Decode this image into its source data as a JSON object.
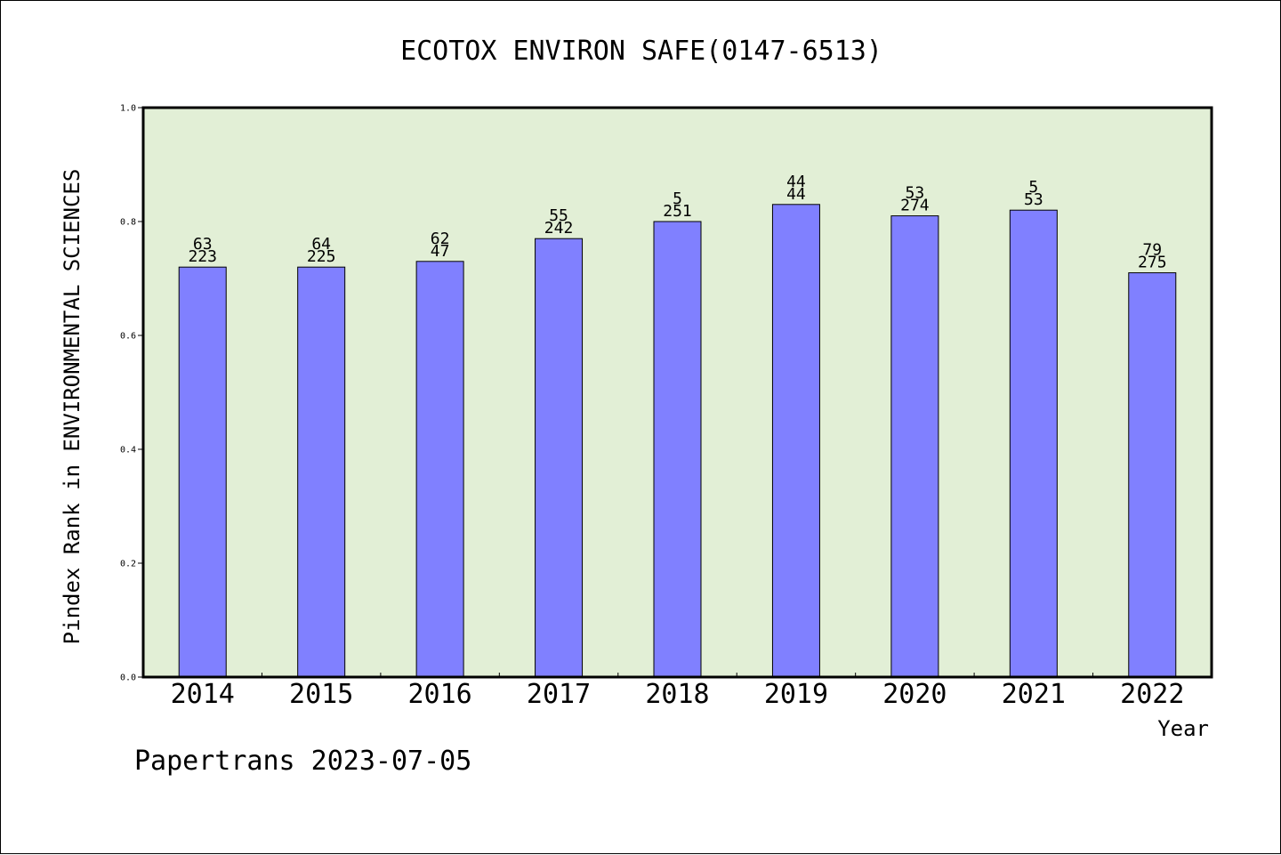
{
  "chart_data": {
    "type": "bar",
    "title": "ECOTOX ENVIRON SAFE(0147-6513)",
    "xlabel": "Year",
    "ylabel": "Pindex Rank in ENVIRONMENTAL SCIENCES",
    "categories": [
      "2014",
      "2015",
      "2016",
      "2017",
      "2018",
      "2019",
      "2020",
      "2021",
      "2022"
    ],
    "values": [
      0.72,
      0.72,
      0.73,
      0.77,
      0.8,
      0.83,
      0.81,
      0.82,
      0.71
    ],
    "labels_top": [
      "63",
      "64",
      "62",
      "55",
      "5",
      "44",
      "53",
      "5",
      "79"
    ],
    "labels_bottom": [
      "223",
      "225",
      "47",
      "242",
      "251",
      "44",
      "274",
      "53",
      "275"
    ],
    "ylim": [
      0,
      1.0
    ],
    "yticks": [
      "0.0",
      "0.2",
      "0.4",
      "0.6",
      "0.8",
      "1.0"
    ],
    "grid": false,
    "legend": "none",
    "colors": {
      "bar": "#8080ff",
      "plot_background": "#e2efd6",
      "axes": "#000000"
    }
  },
  "footer": "Papertrans 2023-07-05"
}
